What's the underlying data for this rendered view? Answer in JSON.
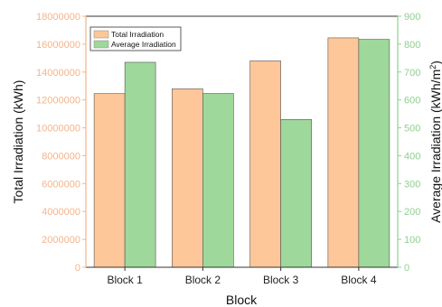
{
  "chart_data": {
    "type": "bar",
    "categories": [
      "Block 1",
      "Block 2",
      "Block 3",
      "Block 4"
    ],
    "series": [
      {
        "name": "Total Irradiation",
        "axis": "left",
        "color": "#fdc799",
        "values": [
          12450000,
          12800000,
          14800000,
          16450000
        ]
      },
      {
        "name": "Average Irradiation",
        "axis": "right",
        "color": "#9ed89b",
        "values": [
          735,
          623,
          530,
          817
        ]
      }
    ],
    "xlabel": "Block",
    "ylabel_left": "Total Irradiation (kWh)",
    "ylabel_right_base": "Average Irradiation (kWh/m",
    "ylabel_right_sup": "2",
    "ylabel_right_tail": ")",
    "ylim_left": [
      0,
      18000000
    ],
    "ylim_right": [
      0,
      900
    ],
    "yticks_left": [
      "0",
      "2000000",
      "4000000",
      "6000000",
      "8000000",
      "10000000",
      "12000000",
      "14000000",
      "16000000",
      "18000000"
    ],
    "yticks_right": [
      "0",
      "100",
      "200",
      "300",
      "400",
      "500",
      "600",
      "700",
      "800",
      "900"
    ],
    "left_axis_color": "#f5b48a",
    "right_axis_color": "#8fd08f",
    "grid": false,
    "legend_position": "top-left"
  }
}
